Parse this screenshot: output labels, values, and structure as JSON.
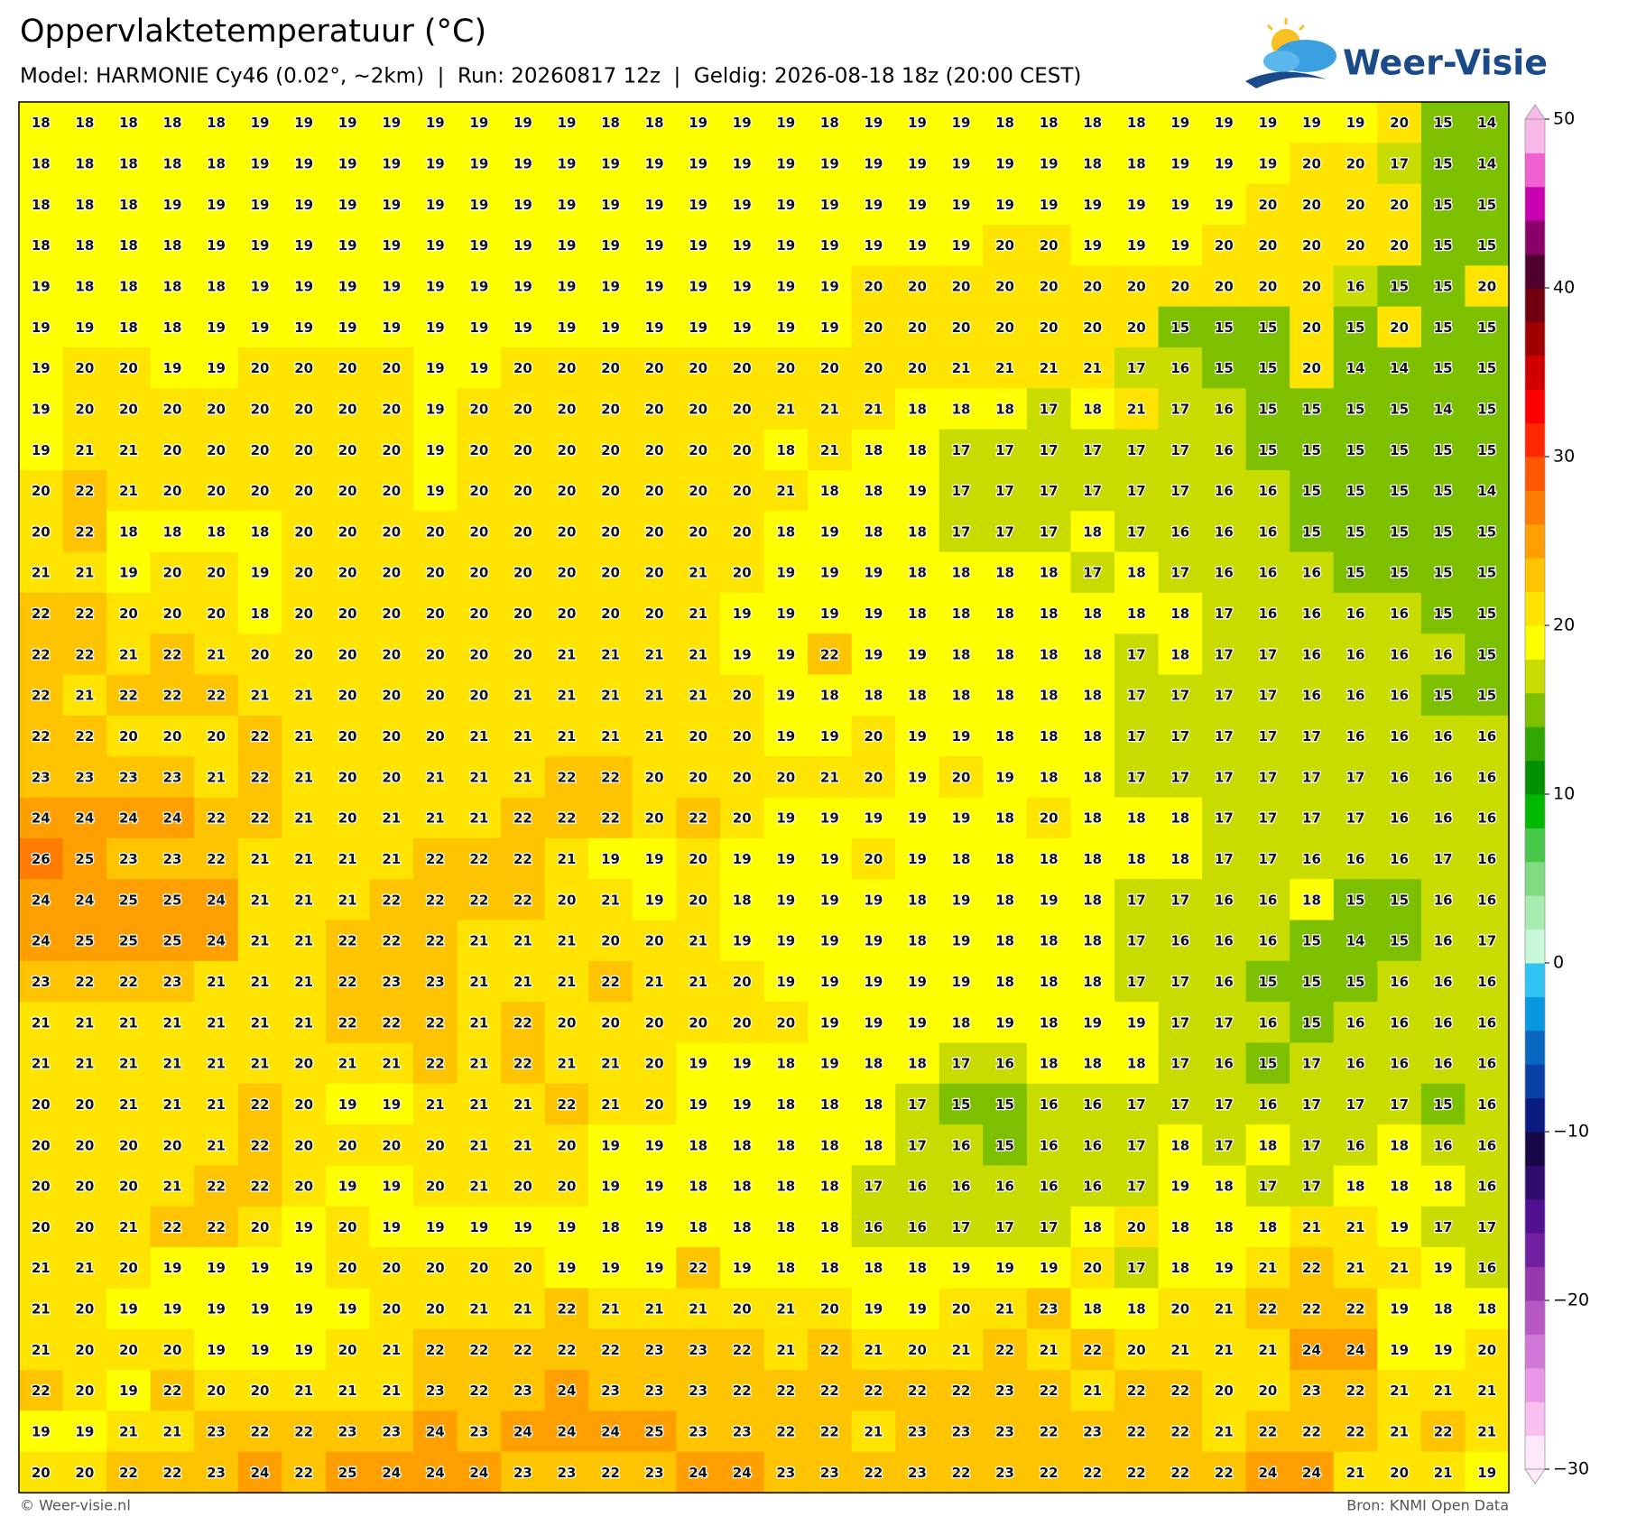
{
  "map": {
    "title": "Oppervlaktetemperatuur (°C)",
    "subtitle": "Model: HARMONIE Cy46 (0.02°, ~2km)  |  Run: 20260817 12z  |  Geldig: 2026-08-18 18z (20:00 CEST)",
    "logo": "Weer-Visie",
    "footer_left": "© Weer-visie.nl",
    "footer_right": "Bron: KNMI Open Data",
    "grid": [
      [
        18,
        18,
        18,
        18,
        18,
        19,
        19,
        19,
        19,
        19,
        19,
        19,
        19,
        18,
        18,
        19,
        19,
        19,
        18,
        19,
        19,
        19,
        18,
        18,
        18,
        18,
        19,
        19,
        19,
        19,
        19,
        20,
        15,
        14
      ],
      [
        18,
        18,
        18,
        18,
        18,
        19,
        19,
        19,
        19,
        19,
        19,
        19,
        19,
        19,
        19,
        19,
        19,
        19,
        19,
        19,
        19,
        19,
        19,
        19,
        18,
        18,
        19,
        19,
        19,
        20,
        20,
        17,
        15,
        14
      ],
      [
        18,
        18,
        18,
        19,
        19,
        19,
        19,
        19,
        19,
        19,
        19,
        19,
        19,
        19,
        19,
        19,
        19,
        19,
        19,
        19,
        19,
        19,
        19,
        19,
        19,
        19,
        19,
        19,
        20,
        20,
        20,
        20,
        15,
        15
      ],
      [
        18,
        18,
        18,
        18,
        19,
        19,
        19,
        19,
        19,
        19,
        19,
        19,
        19,
        19,
        19,
        19,
        19,
        19,
        19,
        19,
        19,
        19,
        20,
        20,
        19,
        19,
        19,
        20,
        20,
        20,
        20,
        20,
        15,
        15
      ],
      [
        19,
        18,
        18,
        18,
        18,
        19,
        19,
        19,
        19,
        19,
        19,
        19,
        19,
        19,
        19,
        19,
        19,
        19,
        19,
        20,
        20,
        20,
        20,
        20,
        20,
        20,
        20,
        20,
        20,
        20,
        16,
        15,
        15,
        20
      ],
      [
        19,
        19,
        18,
        18,
        19,
        19,
        19,
        19,
        19,
        19,
        19,
        19,
        19,
        19,
        19,
        19,
        19,
        19,
        19,
        20,
        20,
        20,
        20,
        20,
        20,
        20,
        15,
        15,
        15,
        20,
        15,
        20,
        15,
        15
      ],
      [
        19,
        20,
        20,
        19,
        19,
        20,
        20,
        20,
        20,
        19,
        19,
        20,
        20,
        20,
        20,
        20,
        20,
        20,
        20,
        20,
        20,
        21,
        21,
        21,
        21,
        17,
        16,
        15,
        15,
        20,
        14,
        14,
        15,
        15
      ],
      [
        19,
        20,
        20,
        20,
        20,
        20,
        20,
        20,
        20,
        19,
        20,
        20,
        20,
        20,
        20,
        20,
        20,
        21,
        21,
        21,
        18,
        18,
        18,
        17,
        18,
        21,
        17,
        16,
        15,
        15,
        15,
        15,
        14,
        15
      ],
      [
        19,
        21,
        21,
        20,
        20,
        20,
        20,
        20,
        20,
        19,
        20,
        20,
        20,
        20,
        20,
        20,
        20,
        18,
        21,
        18,
        18,
        17,
        17,
        17,
        17,
        17,
        17,
        16,
        15,
        15,
        15,
        15,
        15,
        15
      ],
      [
        20,
        22,
        21,
        20,
        20,
        20,
        20,
        20,
        20,
        19,
        20,
        20,
        20,
        20,
        20,
        20,
        20,
        21,
        18,
        18,
        19,
        17,
        17,
        17,
        17,
        17,
        17,
        16,
        16,
        15,
        15,
        15,
        15,
        14
      ],
      [
        20,
        22,
        18,
        18,
        18,
        18,
        20,
        20,
        20,
        20,
        20,
        20,
        20,
        20,
        20,
        20,
        20,
        18,
        19,
        18,
        18,
        17,
        17,
        17,
        18,
        17,
        16,
        16,
        16,
        15,
        15,
        15,
        15,
        15
      ],
      [
        21,
        21,
        19,
        20,
        20,
        19,
        20,
        20,
        20,
        20,
        20,
        20,
        20,
        20,
        20,
        21,
        20,
        19,
        19,
        19,
        18,
        18,
        18,
        18,
        17,
        18,
        17,
        16,
        16,
        16,
        15,
        15,
        15,
        15
      ],
      [
        22,
        22,
        20,
        20,
        20,
        18,
        20,
        20,
        20,
        20,
        20,
        20,
        20,
        20,
        20,
        21,
        19,
        19,
        19,
        19,
        18,
        18,
        18,
        18,
        18,
        18,
        18,
        17,
        16,
        16,
        16,
        16,
        15,
        15
      ],
      [
        22,
        22,
        21,
        22,
        21,
        20,
        20,
        20,
        20,
        20,
        20,
        20,
        21,
        21,
        21,
        21,
        19,
        19,
        22,
        19,
        19,
        18,
        18,
        18,
        18,
        17,
        18,
        17,
        17,
        16,
        16,
        16,
        16,
        15
      ],
      [
        22,
        21,
        22,
        22,
        22,
        21,
        21,
        20,
        20,
        20,
        20,
        21,
        21,
        21,
        21,
        21,
        20,
        19,
        18,
        18,
        18,
        18,
        18,
        18,
        18,
        17,
        17,
        17,
        17,
        16,
        16,
        16,
        15,
        15
      ],
      [
        22,
        22,
        20,
        20,
        20,
        22,
        21,
        20,
        20,
        20,
        21,
        21,
        21,
        21,
        21,
        20,
        20,
        19,
        19,
        20,
        19,
        19,
        18,
        18,
        18,
        17,
        17,
        17,
        17,
        17,
        16,
        16,
        16,
        16
      ],
      [
        23,
        23,
        23,
        23,
        21,
        22,
        21,
        20,
        20,
        21,
        21,
        21,
        22,
        22,
        20,
        20,
        20,
        20,
        21,
        20,
        19,
        20,
        19,
        18,
        18,
        17,
        17,
        17,
        17,
        17,
        17,
        16,
        16,
        16
      ],
      [
        24,
        24,
        24,
        24,
        22,
        22,
        21,
        20,
        21,
        21,
        21,
        22,
        22,
        22,
        20,
        22,
        20,
        19,
        19,
        19,
        19,
        19,
        18,
        20,
        18,
        18,
        18,
        17,
        17,
        17,
        17,
        16,
        16,
        16
      ],
      [
        26,
        25,
        23,
        23,
        22,
        21,
        21,
        21,
        21,
        22,
        22,
        22,
        21,
        19,
        19,
        20,
        19,
        19,
        19,
        20,
        19,
        18,
        18,
        18,
        18,
        18,
        18,
        17,
        17,
        16,
        16,
        16,
        17,
        16
      ],
      [
        24,
        24,
        25,
        25,
        24,
        21,
        21,
        21,
        22,
        22,
        22,
        22,
        20,
        21,
        19,
        20,
        18,
        19,
        19,
        19,
        18,
        19,
        18,
        19,
        18,
        17,
        17,
        16,
        16,
        18,
        15,
        15,
        16,
        16
      ],
      [
        24,
        25,
        25,
        25,
        24,
        21,
        21,
        22,
        22,
        22,
        21,
        21,
        21,
        20,
        20,
        21,
        19,
        19,
        19,
        19,
        18,
        19,
        18,
        18,
        18,
        17,
        16,
        16,
        16,
        15,
        14,
        15,
        16,
        17
      ],
      [
        23,
        22,
        22,
        23,
        21,
        21,
        21,
        22,
        23,
        23,
        21,
        21,
        21,
        22,
        21,
        21,
        20,
        19,
        19,
        19,
        19,
        19,
        18,
        18,
        18,
        17,
        17,
        16,
        15,
        15,
        15,
        16,
        16,
        16
      ],
      [
        21,
        21,
        21,
        21,
        21,
        21,
        21,
        22,
        22,
        22,
        21,
        22,
        20,
        20,
        20,
        20,
        20,
        20,
        19,
        19,
        19,
        18,
        19,
        18,
        19,
        19,
        17,
        17,
        16,
        15,
        16,
        16,
        16,
        16
      ],
      [
        21,
        21,
        21,
        21,
        21,
        21,
        20,
        21,
        21,
        22,
        21,
        22,
        21,
        21,
        20,
        19,
        19,
        18,
        19,
        18,
        18,
        17,
        16,
        18,
        18,
        18,
        17,
        16,
        15,
        17,
        16,
        16,
        16,
        16
      ],
      [
        20,
        20,
        21,
        21,
        21,
        22,
        20,
        19,
        19,
        21,
        21,
        21,
        22,
        21,
        20,
        19,
        19,
        18,
        18,
        18,
        17,
        15,
        15,
        16,
        16,
        17,
        17,
        17,
        16,
        17,
        17,
        17,
        15,
        16
      ],
      [
        20,
        20,
        20,
        20,
        21,
        22,
        20,
        20,
        20,
        20,
        21,
        21,
        20,
        19,
        19,
        18,
        18,
        18,
        18,
        18,
        17,
        16,
        15,
        16,
        16,
        17,
        18,
        17,
        18,
        17,
        16,
        18,
        16,
        16
      ],
      [
        20,
        20,
        20,
        21,
        22,
        22,
        20,
        19,
        19,
        20,
        21,
        20,
        20,
        19,
        19,
        18,
        18,
        18,
        18,
        17,
        16,
        16,
        16,
        16,
        16,
        17,
        19,
        18,
        17,
        17,
        18,
        18,
        18,
        16
      ],
      [
        20,
        20,
        21,
        22,
        22,
        20,
        19,
        20,
        19,
        19,
        19,
        19,
        19,
        18,
        19,
        18,
        18,
        18,
        18,
        16,
        16,
        17,
        17,
        17,
        18,
        20,
        18,
        18,
        18,
        21,
        21,
        19,
        17,
        17
      ],
      [
        21,
        21,
        20,
        19,
        19,
        19,
        19,
        20,
        20,
        20,
        20,
        20,
        19,
        19,
        19,
        22,
        19,
        18,
        18,
        18,
        18,
        19,
        19,
        19,
        20,
        17,
        18,
        19,
        21,
        22,
        21,
        21,
        19,
        16
      ],
      [
        21,
        20,
        19,
        19,
        19,
        19,
        19,
        19,
        20,
        20,
        21,
        21,
        22,
        21,
        21,
        21,
        20,
        21,
        20,
        19,
        19,
        20,
        21,
        23,
        18,
        18,
        20,
        21,
        22,
        22,
        22,
        19,
        18,
        18
      ],
      [
        21,
        20,
        20,
        20,
        19,
        19,
        19,
        20,
        21,
        22,
        22,
        22,
        22,
        22,
        23,
        23,
        22,
        21,
        22,
        21,
        20,
        21,
        22,
        21,
        22,
        20,
        21,
        21,
        21,
        24,
        24,
        19,
        19,
        20
      ],
      [
        22,
        20,
        19,
        22,
        20,
        20,
        21,
        21,
        21,
        23,
        22,
        23,
        24,
        23,
        23,
        23,
        22,
        22,
        22,
        22,
        22,
        22,
        23,
        22,
        21,
        22,
        22,
        20,
        20,
        23,
        22,
        21,
        21,
        21
      ],
      [
        19,
        19,
        21,
        21,
        23,
        22,
        22,
        23,
        23,
        24,
        23,
        24,
        24,
        24,
        25,
        23,
        23,
        22,
        22,
        21,
        23,
        23,
        23,
        22,
        23,
        22,
        22,
        21,
        22,
        22,
        22,
        21,
        22,
        21
      ],
      [
        20,
        20,
        22,
        22,
        23,
        24,
        22,
        25,
        24,
        24,
        24,
        23,
        23,
        22,
        23,
        24,
        24,
        23,
        23,
        22,
        23,
        22,
        23,
        22,
        22,
        22,
        22,
        22,
        24,
        24,
        21,
        20,
        21,
        19
      ]
    ],
    "colorbar": {
      "lim": [
        -30,
        50
      ],
      "ticks": [
        {
          "value": -30,
          "label": "−30"
        },
        {
          "value": -20,
          "label": "−20"
        },
        {
          "value": -10,
          "label": "−10"
        },
        0,
        10,
        20,
        30,
        40,
        50
      ],
      "colors": [
        "#fde8fa",
        "#f8c0f0",
        "#e898e4",
        "#d078d8",
        "#b858c4",
        "#9838b0",
        "#7020a0",
        "#501090",
        "#300c70",
        "#180848",
        "#0a1c80",
        "#0840a8",
        "#0868c0",
        "#0898e0",
        "#30c4f4",
        "#c8f8d8",
        "#a8ecb0",
        "#80dc80",
        "#48c848",
        "#00b800",
        "#009000",
        "#30a800",
        "#7cc000",
        "#c8dc00",
        "#ffff00",
        "#ffe400",
        "#ffc400",
        "#ffa000",
        "#ff7c00",
        "#ff5800",
        "#ff2800",
        "#ff0000",
        "#d00000",
        "#a00000",
        "#700010",
        "#500030",
        "#880068",
        "#c800b0",
        "#f060d0",
        "#f8b8e8"
      ]
    }
  }
}
